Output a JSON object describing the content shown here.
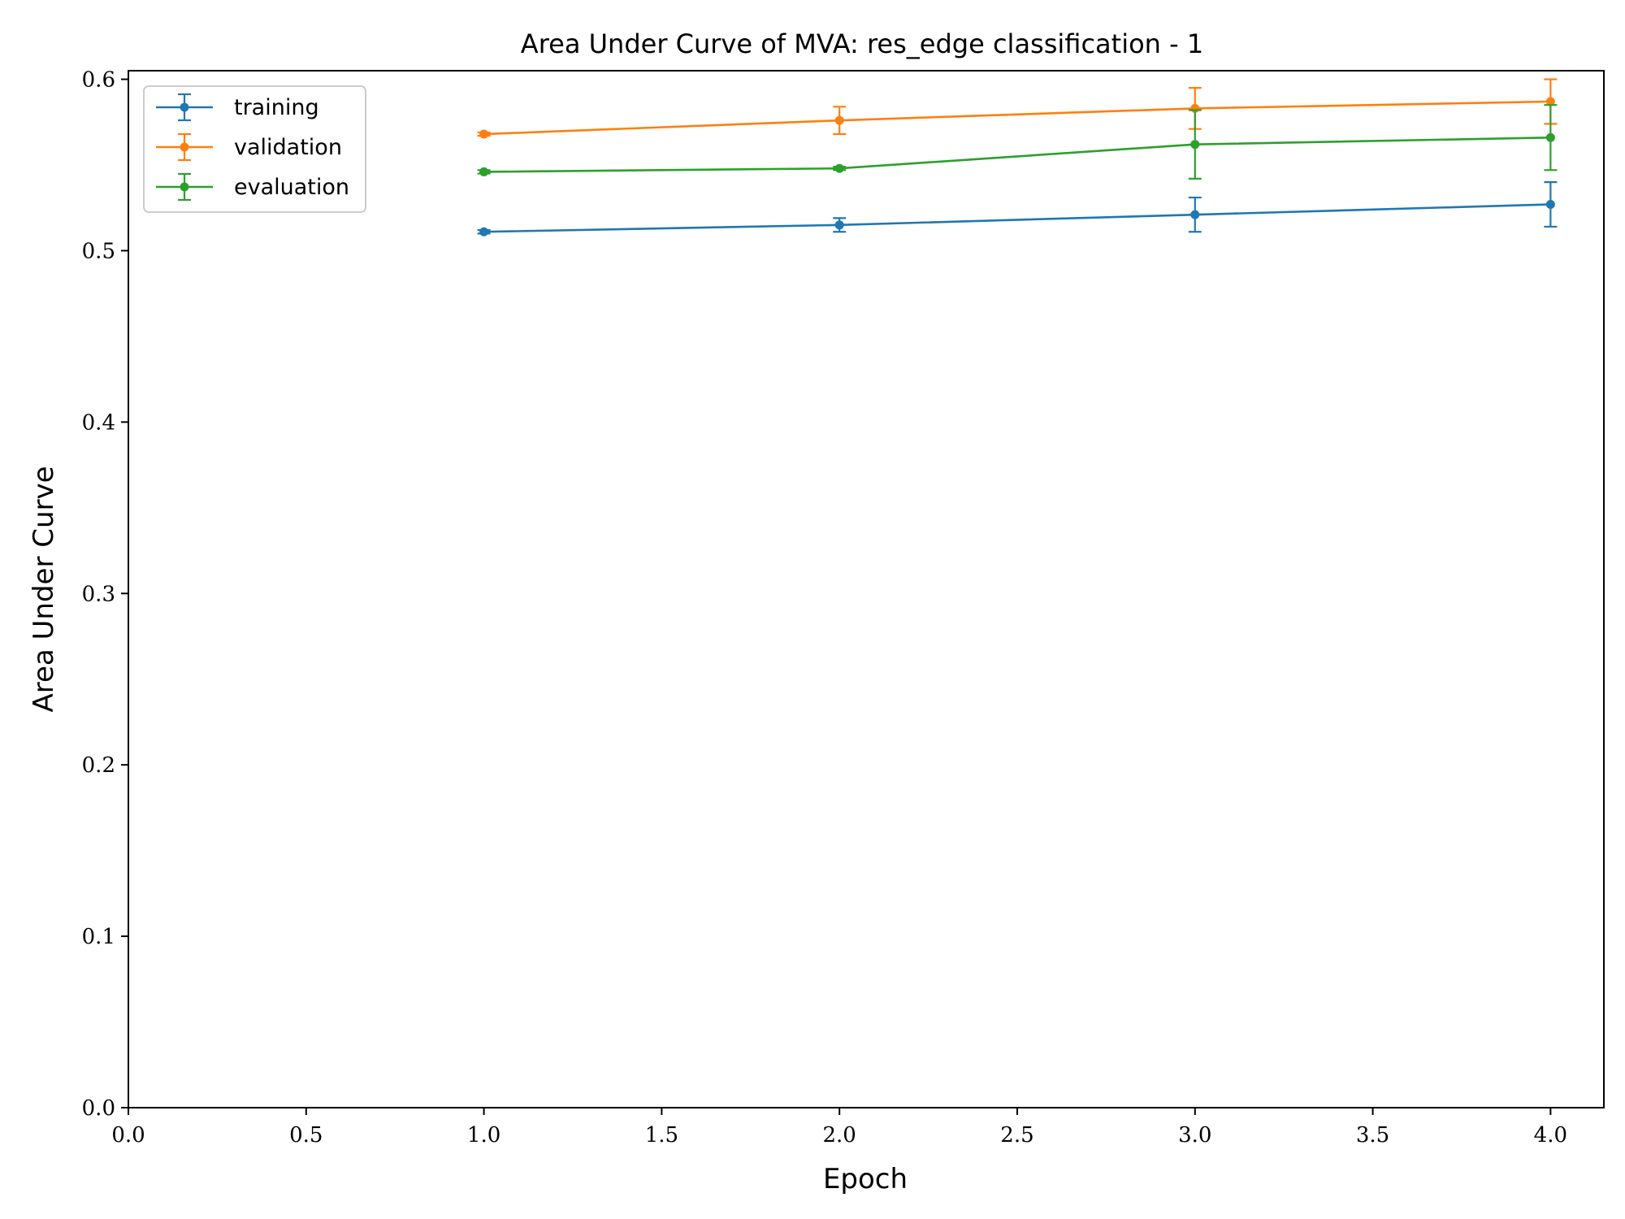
{
  "chart_data": {
    "type": "line",
    "title": "Area Under Curve of MVA: res_edge classification - 1",
    "xlabel": "Epoch",
    "ylabel": "Area Under Curve",
    "xlim": [
      0.0,
      4.15
    ],
    "ylim": [
      0.0,
      0.605
    ],
    "xticks": [
      0.0,
      0.5,
      1.0,
      1.5,
      2.0,
      2.5,
      3.0,
      3.5,
      4.0
    ],
    "xtick_labels": [
      "0.0",
      "0.5",
      "1.0",
      "1.5",
      "2.0",
      "2.5",
      "3.0",
      "3.5",
      "4.0"
    ],
    "yticks": [
      0.0,
      0.1,
      0.2,
      0.3,
      0.4,
      0.5,
      0.6
    ],
    "ytick_labels": [
      "0.0",
      "0.1",
      "0.2",
      "0.3",
      "0.4",
      "0.5",
      "0.6"
    ],
    "grid": false,
    "legend_position": "top-left",
    "series": [
      {
        "name": "training",
        "color": "#1f77b4",
        "x": [
          1,
          2,
          3,
          4
        ],
        "y": [
          0.511,
          0.515,
          0.521,
          0.527
        ],
        "yerr": [
          0.001,
          0.004,
          0.01,
          0.013
        ]
      },
      {
        "name": "validation",
        "color": "#ff7f0e",
        "x": [
          1,
          2,
          3,
          4
        ],
        "y": [
          0.568,
          0.576,
          0.583,
          0.587
        ],
        "yerr": [
          0.001,
          0.008,
          0.012,
          0.013
        ]
      },
      {
        "name": "evaluation",
        "color": "#2ca02c",
        "x": [
          1,
          2,
          3,
          4
        ],
        "y": [
          0.546,
          0.548,
          0.562,
          0.566
        ],
        "yerr": [
          0.001,
          0.001,
          0.02,
          0.019
        ]
      }
    ]
  }
}
